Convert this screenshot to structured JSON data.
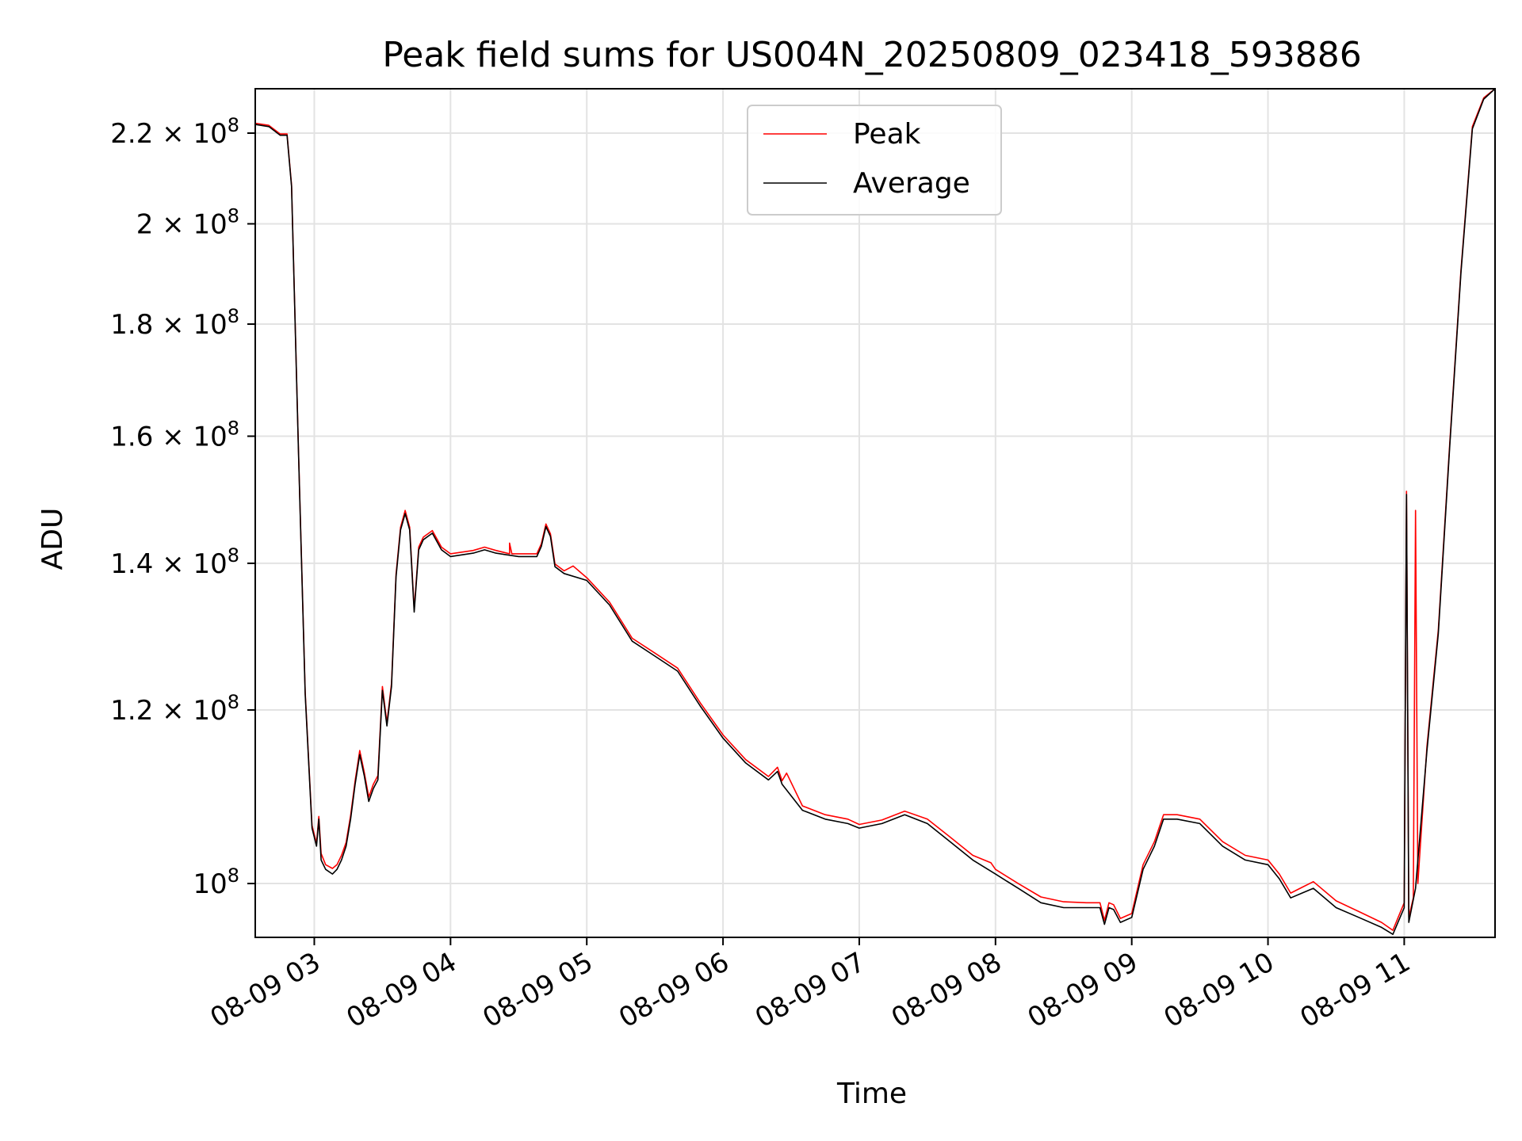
{
  "chart_data": {
    "type": "line",
    "title": "Peak field sums for US004N_20250809_023418_593886",
    "xlabel": "Time",
    "ylabel": "ADU",
    "xlim": [
      "2025-08-09T02:34",
      "2025-08-09T11:40"
    ],
    "ylim": [
      94500000,
      230500000
    ],
    "yscale": "log",
    "grid": true,
    "legend_placement": "upper center",
    "x_ticks": [
      {
        "value": "2025-08-09T03:00",
        "label": "08-09 03"
      },
      {
        "value": "2025-08-09T04:00",
        "label": "08-09 04"
      },
      {
        "value": "2025-08-09T05:00",
        "label": "08-09 05"
      },
      {
        "value": "2025-08-09T06:00",
        "label": "08-09 06"
      },
      {
        "value": "2025-08-09T07:00",
        "label": "08-09 07"
      },
      {
        "value": "2025-08-09T08:00",
        "label": "08-09 08"
      },
      {
        "value": "2025-08-09T09:00",
        "label": "08-09 09"
      },
      {
        "value": "2025-08-09T10:00",
        "label": "08-09 10"
      },
      {
        "value": "2025-08-09T11:00",
        "label": "08-09 11"
      }
    ],
    "y_ticks": [
      {
        "value": 100000000,
        "mant": "10",
        "exp": "8"
      },
      {
        "value": 120000000,
        "mant": "1.2 × 10",
        "exp": "8"
      },
      {
        "value": 140000000,
        "mant": "1.4 × 10",
        "exp": "8"
      },
      {
        "value": 160000000,
        "mant": "1.6 × 10",
        "exp": "8"
      },
      {
        "value": 180000000,
        "mant": "1.8 × 10",
        "exp": "8"
      },
      {
        "value": 200000000,
        "mant": "2 × 10",
        "exp": "8"
      },
      {
        "value": 220000000,
        "mant": "2.2 × 10",
        "exp": "8"
      }
    ],
    "series": [
      {
        "name": "Average",
        "color": "#000000",
        "points": [
          [
            "2025-08-09T02:34",
            222000000
          ],
          [
            "2025-08-09T02:40",
            221500000
          ],
          [
            "2025-08-09T02:45",
            219500000
          ],
          [
            "2025-08-09T02:48",
            219500000
          ],
          [
            "2025-08-09T02:50",
            208000000
          ],
          [
            "2025-08-09T02:53",
            158000000
          ],
          [
            "2025-08-09T02:56",
            122000000
          ],
          [
            "2025-08-09T02:59",
            106000000
          ],
          [
            "2025-08-09T03:01",
            104000000
          ],
          [
            "2025-08-09T03:02",
            107000000
          ],
          [
            "2025-08-09T03:03",
            102500000
          ],
          [
            "2025-08-09T03:05",
            101500000
          ],
          [
            "2025-08-09T03:08",
            101000000
          ],
          [
            "2025-08-09T03:10",
            101500000
          ],
          [
            "2025-08-09T03:12",
            102500000
          ],
          [
            "2025-08-09T03:14",
            104000000
          ],
          [
            "2025-08-09T03:16",
            107000000
          ],
          [
            "2025-08-09T03:18",
            111000000
          ],
          [
            "2025-08-09T03:20",
            114500000
          ],
          [
            "2025-08-09T03:22",
            112000000
          ],
          [
            "2025-08-09T03:24",
            109000000
          ],
          [
            "2025-08-09T03:26",
            110500000
          ],
          [
            "2025-08-09T03:28",
            111500000
          ],
          [
            "2025-08-09T03:30",
            122500000
          ],
          [
            "2025-08-09T03:32",
            118000000
          ],
          [
            "2025-08-09T03:34",
            123000000
          ],
          [
            "2025-08-09T03:36",
            138000000
          ],
          [
            "2025-08-09T03:38",
            145000000
          ],
          [
            "2025-08-09T03:40",
            147500000
          ],
          [
            "2025-08-09T03:42",
            145000000
          ],
          [
            "2025-08-09T03:44",
            133000000
          ],
          [
            "2025-08-09T03:46",
            142000000
          ],
          [
            "2025-08-09T03:48",
            143500000
          ],
          [
            "2025-08-09T03:52",
            144500000
          ],
          [
            "2025-08-09T03:56",
            142000000
          ],
          [
            "2025-08-09T04:00",
            141000000
          ],
          [
            "2025-08-09T04:10",
            141500000
          ],
          [
            "2025-08-09T04:15",
            142000000
          ],
          [
            "2025-08-09T04:20",
            141500000
          ],
          [
            "2025-08-09T04:30",
            141000000
          ],
          [
            "2025-08-09T04:38",
            141000000
          ],
          [
            "2025-08-09T04:40",
            142500000
          ],
          [
            "2025-08-09T04:42",
            145500000
          ],
          [
            "2025-08-09T04:44",
            144000000
          ],
          [
            "2025-08-09T04:46",
            139500000
          ],
          [
            "2025-08-09T04:50",
            138500000
          ],
          [
            "2025-08-09T05:00",
            137500000
          ],
          [
            "2025-08-09T05:10",
            134000000
          ],
          [
            "2025-08-09T05:20",
            129000000
          ],
          [
            "2025-08-09T05:30",
            127000000
          ],
          [
            "2025-08-09T05:40",
            125000000
          ],
          [
            "2025-08-09T05:50",
            120500000
          ],
          [
            "2025-08-09T06:00",
            116500000
          ],
          [
            "2025-08-09T06:10",
            113500000
          ],
          [
            "2025-08-09T06:20",
            111500000
          ],
          [
            "2025-08-09T06:24",
            112500000
          ],
          [
            "2025-08-09T06:26",
            111000000
          ],
          [
            "2025-08-09T06:35",
            108000000
          ],
          [
            "2025-08-09T06:45",
            107000000
          ],
          [
            "2025-08-09T06:55",
            106500000
          ],
          [
            "2025-08-09T07:00",
            106000000
          ],
          [
            "2025-08-09T07:10",
            106500000
          ],
          [
            "2025-08-09T07:20",
            107500000
          ],
          [
            "2025-08-09T07:30",
            106500000
          ],
          [
            "2025-08-09T07:40",
            104500000
          ],
          [
            "2025-08-09T07:50",
            102500000
          ],
          [
            "2025-08-09T08:00",
            101000000
          ],
          [
            "2025-08-09T08:10",
            99500000
          ],
          [
            "2025-08-09T08:20",
            98000000
          ],
          [
            "2025-08-09T08:30",
            97500000
          ],
          [
            "2025-08-09T08:40",
            97500000
          ],
          [
            "2025-08-09T08:46",
            97500000
          ],
          [
            "2025-08-09T08:48",
            95800000
          ],
          [
            "2025-08-09T08:50",
            97500000
          ],
          [
            "2025-08-09T08:52",
            97300000
          ],
          [
            "2025-08-09T08:55",
            96000000
          ],
          [
            "2025-08-09T09:00",
            96500000
          ],
          [
            "2025-08-09T09:05",
            101500000
          ],
          [
            "2025-08-09T09:10",
            104000000
          ],
          [
            "2025-08-09T09:14",
            107000000
          ],
          [
            "2025-08-09T09:20",
            107000000
          ],
          [
            "2025-08-09T09:30",
            106500000
          ],
          [
            "2025-08-09T09:40",
            104000000
          ],
          [
            "2025-08-09T09:50",
            102500000
          ],
          [
            "2025-08-09T10:00",
            102000000
          ],
          [
            "2025-08-09T10:05",
            100500000
          ],
          [
            "2025-08-09T10:10",
            98500000
          ],
          [
            "2025-08-09T10:15",
            99000000
          ],
          [
            "2025-08-09T10:20",
            99500000
          ],
          [
            "2025-08-09T10:30",
            97500000
          ],
          [
            "2025-08-09T10:40",
            96500000
          ],
          [
            "2025-08-09T10:50",
            95500000
          ],
          [
            "2025-08-09T10:55",
            94800000
          ],
          [
            "2025-08-09T11:00",
            97500000
          ],
          [
            "2025-08-09T11:01",
            150500000
          ],
          [
            "2025-08-09T11:02",
            96000000
          ],
          [
            "2025-08-09T11:05",
            99500000
          ],
          [
            "2025-08-09T11:10",
            115000000
          ],
          [
            "2025-08-09T11:15",
            130000000
          ],
          [
            "2025-08-09T11:20",
            158000000
          ],
          [
            "2025-08-09T11:25",
            190000000
          ],
          [
            "2025-08-09T11:30",
            221000000
          ],
          [
            "2025-08-09T11:35",
            228000000
          ],
          [
            "2025-08-09T11:40",
            230500000
          ]
        ]
      },
      {
        "name": "Peak",
        "color": "#ff0000",
        "points": [
          [
            "2025-08-09T02:34",
            222300000
          ],
          [
            "2025-08-09T02:40",
            221800000
          ],
          [
            "2025-08-09T02:45",
            219800000
          ],
          [
            "2025-08-09T02:48",
            219800000
          ],
          [
            "2025-08-09T02:50",
            208300000
          ],
          [
            "2025-08-09T02:53",
            158300000
          ],
          [
            "2025-08-09T02:56",
            122300000
          ],
          [
            "2025-08-09T02:59",
            106300000
          ],
          [
            "2025-08-09T03:01",
            104300000
          ],
          [
            "2025-08-09T03:02",
            107300000
          ],
          [
            "2025-08-09T03:03",
            103200000
          ],
          [
            "2025-08-09T03:05",
            102000000
          ],
          [
            "2025-08-09T03:08",
            101600000
          ],
          [
            "2025-08-09T03:10",
            102000000
          ],
          [
            "2025-08-09T03:12",
            103000000
          ],
          [
            "2025-08-09T03:14",
            104400000
          ],
          [
            "2025-08-09T03:16",
            107400000
          ],
          [
            "2025-08-09T03:18",
            111400000
          ],
          [
            "2025-08-09T03:20",
            115000000
          ],
          [
            "2025-08-09T03:22",
            112400000
          ],
          [
            "2025-08-09T03:24",
            109500000
          ],
          [
            "2025-08-09T03:26",
            111000000
          ],
          [
            "2025-08-09T03:28",
            112000000
          ],
          [
            "2025-08-09T03:30",
            123000000
          ],
          [
            "2025-08-09T03:32",
            118400000
          ],
          [
            "2025-08-09T03:34",
            123400000
          ],
          [
            "2025-08-09T03:36",
            138400000
          ],
          [
            "2025-08-09T03:38",
            145400000
          ],
          [
            "2025-08-09T03:40",
            148000000
          ],
          [
            "2025-08-09T03:42",
            145400000
          ],
          [
            "2025-08-09T03:44",
            133400000
          ],
          [
            "2025-08-09T03:46",
            142400000
          ],
          [
            "2025-08-09T03:48",
            143900000
          ],
          [
            "2025-08-09T03:52",
            144900000
          ],
          [
            "2025-08-09T03:56",
            142400000
          ],
          [
            "2025-08-09T04:00",
            141400000
          ],
          [
            "2025-08-09T04:10",
            141900000
          ],
          [
            "2025-08-09T04:15",
            142400000
          ],
          [
            "2025-08-09T04:20",
            141900000
          ],
          [
            "2025-08-09T04:26",
            141400000
          ],
          [
            "2025-08-09T04:26",
            143000000
          ],
          [
            "2025-08-09T04:27",
            141400000
          ],
          [
            "2025-08-09T04:30",
            141400000
          ],
          [
            "2025-08-09T04:38",
            141400000
          ],
          [
            "2025-08-09T04:40",
            142900000
          ],
          [
            "2025-08-09T04:42",
            145900000
          ],
          [
            "2025-08-09T04:44",
            144400000
          ],
          [
            "2025-08-09T04:46",
            139900000
          ],
          [
            "2025-08-09T04:50",
            138900000
          ],
          [
            "2025-08-09T04:54",
            139600000
          ],
          [
            "2025-08-09T05:00",
            137900000
          ],
          [
            "2025-08-09T05:10",
            134400000
          ],
          [
            "2025-08-09T05:20",
            129400000
          ],
          [
            "2025-08-09T05:30",
            127400000
          ],
          [
            "2025-08-09T05:40",
            125400000
          ],
          [
            "2025-08-09T05:50",
            120900000
          ],
          [
            "2025-08-09T06:00",
            116900000
          ],
          [
            "2025-08-09T06:10",
            113900000
          ],
          [
            "2025-08-09T06:20",
            111900000
          ],
          [
            "2025-08-09T06:24",
            113000000
          ],
          [
            "2025-08-09T06:26",
            111400000
          ],
          [
            "2025-08-09T06:28",
            112300000
          ],
          [
            "2025-08-09T06:35",
            108500000
          ],
          [
            "2025-08-09T06:45",
            107500000
          ],
          [
            "2025-08-09T06:55",
            107000000
          ],
          [
            "2025-08-09T07:00",
            106400000
          ],
          [
            "2025-08-09T07:10",
            106900000
          ],
          [
            "2025-08-09T07:20",
            107900000
          ],
          [
            "2025-08-09T07:30",
            107000000
          ],
          [
            "2025-08-09T07:40",
            105000000
          ],
          [
            "2025-08-09T07:50",
            103000000
          ],
          [
            "2025-08-09T07:58",
            102200000
          ],
          [
            "2025-08-09T08:00",
            101500000
          ],
          [
            "2025-08-09T08:10",
            100000000
          ],
          [
            "2025-08-09T08:20",
            98600000
          ],
          [
            "2025-08-09T08:30",
            98100000
          ],
          [
            "2025-08-09T08:40",
            98000000
          ],
          [
            "2025-08-09T08:46",
            98000000
          ],
          [
            "2025-08-09T08:48",
            96200000
          ],
          [
            "2025-08-09T08:50",
            98000000
          ],
          [
            "2025-08-09T08:52",
            97800000
          ],
          [
            "2025-08-09T08:55",
            96400000
          ],
          [
            "2025-08-09T09:00",
            96900000
          ],
          [
            "2025-08-09T09:05",
            102000000
          ],
          [
            "2025-08-09T09:10",
            104500000
          ],
          [
            "2025-08-09T09:14",
            107500000
          ],
          [
            "2025-08-09T09:20",
            107500000
          ],
          [
            "2025-08-09T09:30",
            107000000
          ],
          [
            "2025-08-09T09:40",
            104500000
          ],
          [
            "2025-08-09T09:50",
            103000000
          ],
          [
            "2025-08-09T10:00",
            102500000
          ],
          [
            "2025-08-09T10:05",
            101000000
          ],
          [
            "2025-08-09T10:10",
            99000000
          ],
          [
            "2025-08-09T10:15",
            99600000
          ],
          [
            "2025-08-09T10:20",
            100200000
          ],
          [
            "2025-08-09T10:30",
            98200000
          ],
          [
            "2025-08-09T10:40",
            97100000
          ],
          [
            "2025-08-09T10:50",
            96000000
          ],
          [
            "2025-08-09T10:55",
            95200000
          ],
          [
            "2025-08-09T11:00",
            98000000
          ],
          [
            "2025-08-09T11:01",
            151000000
          ],
          [
            "2025-08-09T11:02",
            96500000
          ],
          [
            "2025-08-09T11:04",
            98500000
          ],
          [
            "2025-08-09T11:05",
            148000000
          ],
          [
            "2025-08-09T11:06",
            100000000
          ],
          [
            "2025-08-09T11:10",
            115500000
          ],
          [
            "2025-08-09T11:15",
            130500000
          ],
          [
            "2025-08-09T11:20",
            158500000
          ],
          [
            "2025-08-09T11:25",
            190500000
          ],
          [
            "2025-08-09T11:30",
            221500000
          ],
          [
            "2025-08-09T11:35",
            228300000
          ],
          [
            "2025-08-09T11:40",
            230500000
          ]
        ]
      }
    ]
  }
}
